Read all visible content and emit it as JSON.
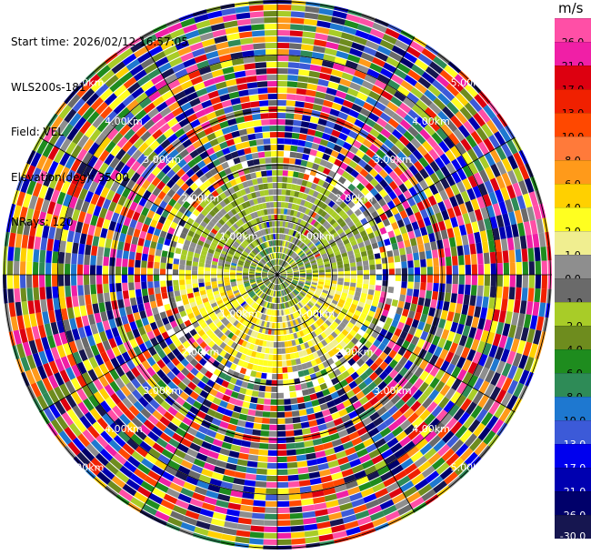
{
  "header": {
    "start_time": "Start time: 2026/02/12 16:57:05",
    "instrument": "WLS200s-181",
    "field": "Field: VEL",
    "elevation": "Elevation(deg): 35.00",
    "nrays": "NRays: 120"
  },
  "colorbar": {
    "unit": "m/s",
    "levels": [
      {
        "label": "26.0",
        "color": "#ff4fa6",
        "text": "#000000"
      },
      {
        "label": "21.0",
        "color": "#f01fa6",
        "text": "#000000"
      },
      {
        "label": "17.0",
        "color": "#dd0010",
        "text": "#000000"
      },
      {
        "label": "13.0",
        "color": "#f02000",
        "text": "#000000"
      },
      {
        "label": "10.0",
        "color": "#ff4800",
        "text": "#000000"
      },
      {
        "label": "8.0",
        "color": "#ff7a3a",
        "text": "#000000"
      },
      {
        "label": "6.0",
        "color": "#ff9a1a",
        "text": "#000000"
      },
      {
        "label": "4.0",
        "color": "#ffd000",
        "text": "#000000"
      },
      {
        "label": "2.0",
        "color": "#ffff20",
        "text": "#000000"
      },
      {
        "label": "1.0",
        "color": "#f0ee90",
        "text": "#000000"
      },
      {
        "label": "0.0",
        "color": "#8e8e8e",
        "text": "#000000"
      },
      {
        "label": "-1.0",
        "color": "#6a6a6a",
        "text": "#000000"
      },
      {
        "label": "-2.0",
        "color": "#a8cc28",
        "text": "#000000"
      },
      {
        "label": "-4.0",
        "color": "#6e8c1e",
        "text": "#000000"
      },
      {
        "label": "-6.0",
        "color": "#1e8c1e",
        "text": "#000000"
      },
      {
        "label": "-8.0",
        "color": "#2e8b57",
        "text": "#000000"
      },
      {
        "label": "-10.0",
        "color": "#1e78d0",
        "text": "#000000"
      },
      {
        "label": "-13.0",
        "color": "#3c5ad8",
        "text": "#ffffff"
      },
      {
        "label": "-17.0",
        "color": "#0000ee",
        "text": "#ffffff"
      },
      {
        "label": "-21.0",
        "color": "#0000b0",
        "text": "#ffffff"
      },
      {
        "label": "-26.0",
        "color": "#00006a",
        "text": "#ffffff"
      },
      {
        "label": "-30.0",
        "color": "#161650",
        "text": "#ffffff"
      }
    ]
  },
  "range_labels": [
    "1.00km",
    "2.00km",
    "3.00km",
    "4.00km",
    "5.00km"
  ],
  "sweep": {
    "n_rays": 120,
    "max_range_km": 5.0
  }
}
